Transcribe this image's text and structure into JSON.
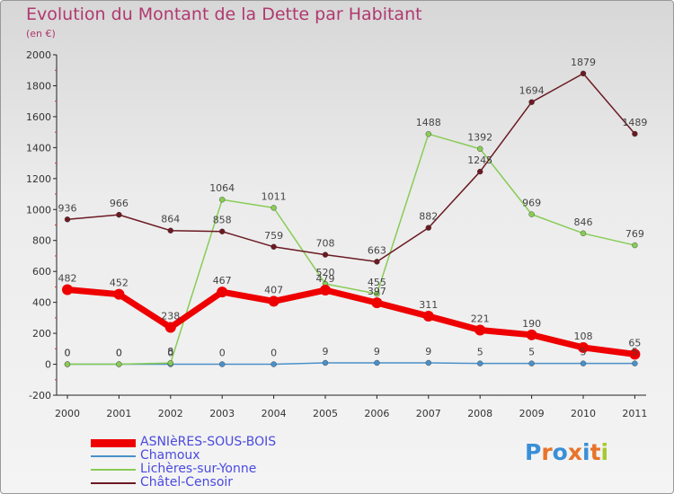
{
  "title": "Evolution du Montant de la Dette par Habitant",
  "subtitle": "(en €)",
  "logo": {
    "text": "Proxiti",
    "colors": [
      "#3a8fd8",
      "#e8732a",
      "#3a8fd8",
      "#e8732a",
      "#3a8fd8",
      "#e8732a",
      "#a8c830"
    ]
  },
  "chart_data": {
    "type": "line",
    "x": [
      2000,
      2001,
      2002,
      2003,
      2004,
      2005,
      2006,
      2007,
      2008,
      2009,
      2010,
      2011
    ],
    "ylim": [
      -200,
      2000
    ],
    "yticks": [
      -200,
      0,
      200,
      400,
      600,
      800,
      1000,
      1200,
      1400,
      1600,
      1800,
      2000
    ],
    "grid": false,
    "legend_position": "bottom-left",
    "series": [
      {
        "name": "ASNIèRES-SOUS-BOIS",
        "color": "#ee0000",
        "values": [
          482,
          452,
          238,
          467,
          407,
          479,
          397,
          311,
          221,
          190,
          108,
          65
        ]
      },
      {
        "name": "Chamoux",
        "color": "#4a90c8",
        "values": [
          0,
          0,
          0,
          0,
          0,
          9,
          9,
          9,
          5,
          5,
          5,
          5
        ]
      },
      {
        "name": "Lichères-sur-Yonne",
        "color": "#88cc55",
        "values": [
          0,
          0,
          8,
          1064,
          1011,
          520,
          455,
          1488,
          1392,
          969,
          846,
          769
        ]
      },
      {
        "name": "Châtel-Censoir",
        "color": "#6b1a22",
        "values": [
          936,
          966,
          864,
          858,
          759,
          708,
          663,
          882,
          1245,
          1694,
          1879,
          1489
        ]
      }
    ]
  }
}
